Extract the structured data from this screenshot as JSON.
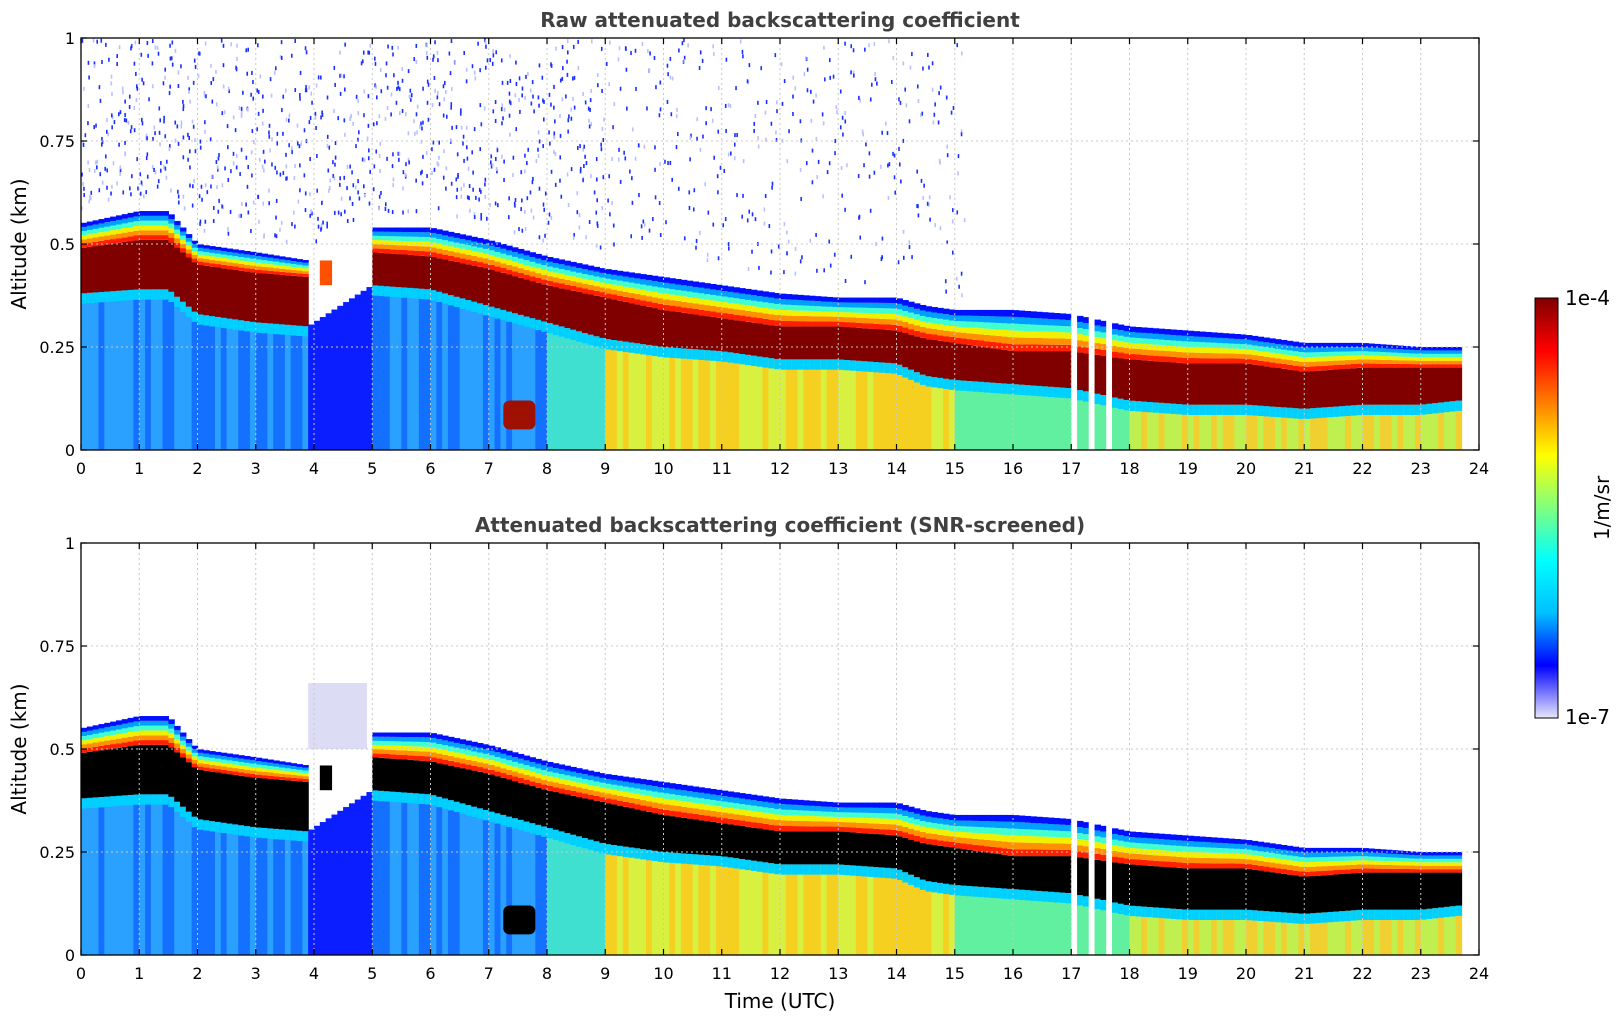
{
  "chart_data": [
    {
      "type": "heatmap",
      "title": "Raw attenuated backscattering coefficient",
      "xlabel": "",
      "ylabel": "Altitude (km)",
      "xlim": [
        0,
        24
      ],
      "ylim": [
        0,
        1
      ],
      "xticks": [
        "0",
        "1",
        "2",
        "3",
        "4",
        "5",
        "6",
        "7",
        "8",
        "9",
        "10",
        "11",
        "12",
        "13",
        "14",
        "15",
        "16",
        "17",
        "18",
        "19",
        "20",
        "21",
        "22",
        "23",
        "24"
      ],
      "yticks": [
        "0",
        "0.25",
        "0.5",
        "0.75",
        "1"
      ],
      "grid": true,
      "variant": "raw",
      "data_end_time": 23.65,
      "cloud_layer": {
        "time": [
          0,
          1,
          1.5,
          2,
          3,
          3.9,
          5,
          6,
          7,
          8,
          9,
          10,
          11,
          12,
          13,
          14,
          14.5,
          15,
          16,
          17,
          18,
          19,
          20,
          21,
          22,
          23,
          23.65
        ],
        "top_km": [
          0.55,
          0.58,
          0.58,
          0.5,
          0.48,
          0.46,
          0.54,
          0.54,
          0.51,
          0.47,
          0.44,
          0.42,
          0.4,
          0.38,
          0.37,
          0.37,
          0.35,
          0.34,
          0.34,
          0.33,
          0.3,
          0.29,
          0.28,
          0.26,
          0.26,
          0.25,
          0.25
        ],
        "core_top_km": [
          0.49,
          0.51,
          0.51,
          0.45,
          0.43,
          0.42,
          0.48,
          0.47,
          0.44,
          0.4,
          0.37,
          0.34,
          0.32,
          0.3,
          0.3,
          0.29,
          0.27,
          0.26,
          0.24,
          0.24,
          0.22,
          0.21,
          0.21,
          0.19,
          0.2,
          0.2,
          0.2
        ],
        "core_base_km": [
          0.38,
          0.39,
          0.39,
          0.33,
          0.31,
          0.3,
          0.4,
          0.39,
          0.35,
          0.31,
          0.27,
          0.25,
          0.24,
          0.22,
          0.22,
          0.21,
          0.18,
          0.17,
          0.16,
          0.15,
          0.12,
          0.11,
          0.11,
          0.1,
          0.11,
          0.11,
          0.12
        ]
      },
      "features": [
        {
          "description": "low aerosol patch",
          "time_start": 7.25,
          "time_end": 7.8,
          "alt_low_km": 0.05,
          "alt_high_km": 0.12
        }
      ]
    },
    {
      "type": "heatmap",
      "title": "Attenuated backscattering coefficient (SNR-screened)",
      "xlabel": "Time (UTC)",
      "ylabel": "Altitude (km)",
      "xlim": [
        0,
        24
      ],
      "ylim": [
        0,
        1
      ],
      "xticks": [
        "0",
        "1",
        "2",
        "3",
        "4",
        "5",
        "6",
        "7",
        "8",
        "9",
        "10",
        "11",
        "12",
        "13",
        "14",
        "15",
        "16",
        "17",
        "18",
        "19",
        "20",
        "21",
        "22",
        "23",
        "24"
      ],
      "yticks": [
        "0",
        "0.25",
        "0.5",
        "0.75",
        "1"
      ],
      "grid": true,
      "variant": "screened",
      "data_end_time": 23.65,
      "screened_core_color": "#000000"
    }
  ],
  "colorbar": {
    "label": "1/m/sr",
    "max_label": "1e-4",
    "min_label": "1e-7",
    "colormap": [
      "#e6e6fa",
      "#0000ff",
      "#00bfff",
      "#00ffff",
      "#7fff7f",
      "#ffff00",
      "#ff7f00",
      "#ff0000",
      "#800000"
    ]
  }
}
